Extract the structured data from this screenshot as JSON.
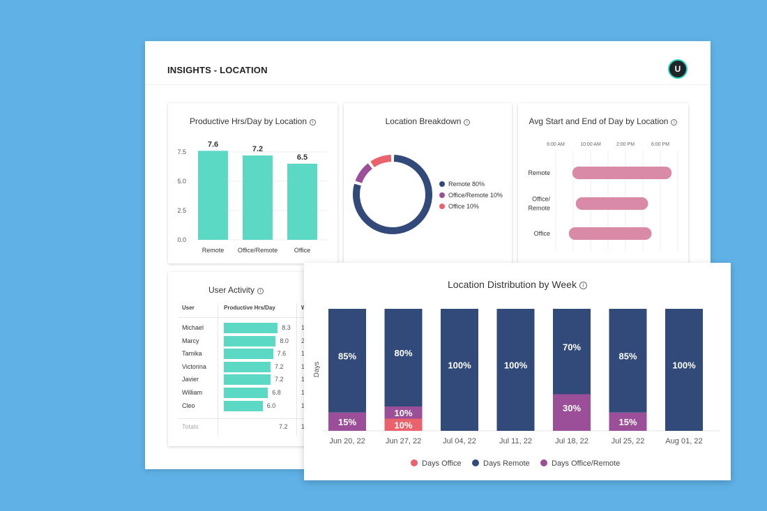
{
  "page": {
    "title": "INSIGHTS - LOCATION",
    "avatar_initial": "U"
  },
  "colors": {
    "background": "#5fb1e6",
    "teal": "#5cd9c5",
    "navy": "#324a7a",
    "purple": "#9a4f98",
    "red": "#ea626c",
    "pink": "#d98aa6",
    "avatar_ring": "#2ed3c0"
  },
  "productive_hours": {
    "title": "Productive Hrs/Day by Location",
    "chart_data": {
      "type": "bar",
      "categories": [
        "Remote",
        "Office/Remote",
        "Office"
      ],
      "values": [
        7.6,
        7.2,
        6.5
      ],
      "data_labels": [
        "7.6",
        "7.2",
        "6.5"
      ],
      "yticks": [
        "0.0",
        "2.5",
        "5.0",
        "7.5"
      ],
      "ylim": [
        0,
        8.5
      ],
      "grid": true
    }
  },
  "location_breakdown": {
    "title": "Location Breakdown",
    "chart_data": {
      "type": "pie",
      "donut": true,
      "slices": [
        {
          "label": "Remote 80%",
          "value": 80,
          "color": "#324a7a"
        },
        {
          "label": "Office/Remote 10%",
          "value": 10,
          "color": "#9a4f98"
        },
        {
          "label": "Office 10%",
          "value": 10,
          "color": "#ea626c"
        }
      ]
    }
  },
  "start_end": {
    "title": "Avg Start and End of Day by Location",
    "chart_data": {
      "type": "bar",
      "orientation": "horizontal-range",
      "xticks": [
        "6:00 AM",
        "10:00 AM",
        "2:00 PM",
        "6:00 PM"
      ],
      "xlim_hours": [
        6,
        20
      ],
      "categories": [
        "Remote",
        "Office/ Remote",
        "Office"
      ],
      "ranges_hours": [
        [
          7.9,
          19.3
        ],
        [
          8.3,
          16.6
        ],
        [
          7.5,
          17.0
        ]
      ]
    }
  },
  "user_activity": {
    "title": "User Activity",
    "columns": [
      "User",
      "Productive Hrs/Day",
      "W"
    ],
    "rows": [
      {
        "user": "Michael",
        "hours": 8.3,
        "label": "8.3",
        "col3": "1"
      },
      {
        "user": "Marcy",
        "hours": 8.0,
        "label": "8.0",
        "col3": "2"
      },
      {
        "user": "Tamika",
        "hours": 7.6,
        "label": "7.6",
        "col3": "1"
      },
      {
        "user": "Victorina",
        "hours": 7.2,
        "label": "7.2",
        "col3": "1"
      },
      {
        "user": "Javier",
        "hours": 7.2,
        "label": "7.2",
        "col3": "1"
      },
      {
        "user": "William",
        "hours": 6.8,
        "label": "6.8",
        "col3": "1"
      },
      {
        "user": "Cleo",
        "hours": 6.0,
        "label": "6.0",
        "col3": "1"
      }
    ],
    "totals": {
      "label": "Totals",
      "hours": "7.2",
      "col3": "1"
    }
  },
  "weekly": {
    "title": "Location Distribution by Week",
    "chart_data": {
      "type": "bar",
      "stacked": true,
      "ylabel": "Days",
      "ylim": [
        0,
        100
      ],
      "categories": [
        "Jun 20, 22",
        "Jun 27, 22",
        "Jul 04, 22",
        "Jul 11, 22",
        "Jul 18, 22",
        "Jul 25, 22",
        "Aug 01, 22"
      ],
      "series": [
        {
          "name": "Days Office",
          "color": "#ea626c",
          "values": [
            0,
            10,
            0,
            0,
            0,
            0,
            0
          ]
        },
        {
          "name": "Days Office/Remote",
          "color": "#9a4f98",
          "values": [
            15,
            10,
            0,
            0,
            30,
            15,
            0
          ]
        },
        {
          "name": "Days Remote",
          "color": "#324a7a",
          "values": [
            85,
            80,
            100,
            100,
            70,
            85,
            100
          ]
        }
      ],
      "legend": [
        "Days Office",
        "Days Remote",
        "Days Office/Remote"
      ],
      "legend_position": "bottom"
    }
  }
}
